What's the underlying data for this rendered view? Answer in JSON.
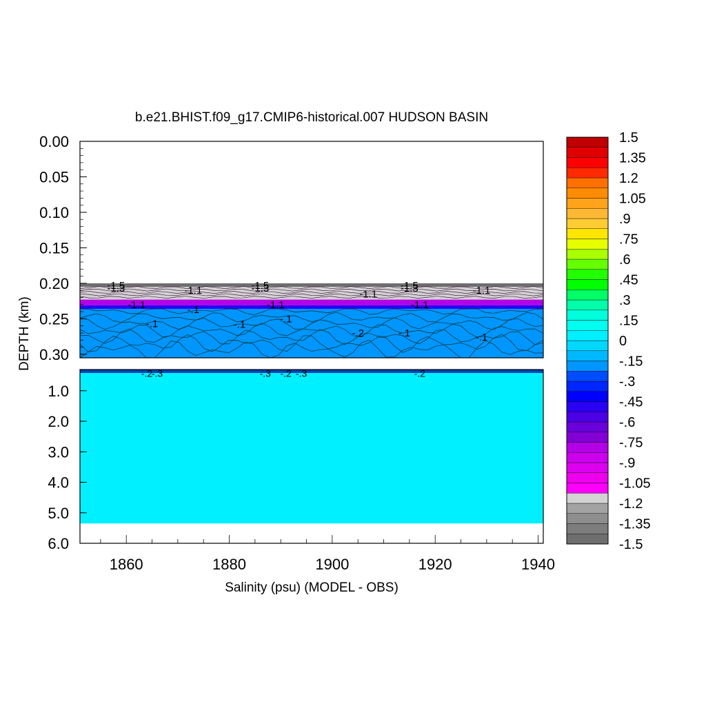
{
  "chart_data": {
    "type": "heatmap",
    "title": "b.e21.BHIST.f09_g17.CMIP6-historical.007 HUDSON BASIN",
    "xlabel": "Salinity (psu) (MODEL - OBS)",
    "ylabel": "DEPTH (km)",
    "xlim": [
      1851,
      1941
    ],
    "x_ticks": [
      1860,
      1880,
      1900,
      1920,
      1940
    ],
    "x_tick_labels": [
      "1860",
      "1880",
      "1900",
      "1920",
      "1940"
    ],
    "upper_panel": {
      "ylim": [
        0.0,
        0.305
      ],
      "y_ticks": [
        0.0,
        0.05,
        0.1,
        0.15,
        0.2,
        0.25,
        0.3
      ],
      "y_tick_labels": [
        "0.00",
        "0.05",
        "0.10",
        "0.15",
        "0.20",
        "0.25",
        "0.30"
      ],
      "layers": [
        {
          "depth_top": 0.2,
          "depth_bottom": 0.205,
          "value": -1.45
        },
        {
          "depth_top": 0.205,
          "depth_bottom": 0.223,
          "value": -1.2
        },
        {
          "depth_top": 0.223,
          "depth_bottom": 0.231,
          "value": -0.8
        },
        {
          "depth_top": 0.231,
          "depth_bottom": 0.236,
          "value": -0.5
        },
        {
          "depth_top": 0.236,
          "depth_bottom": 0.305,
          "value": -0.2
        }
      ],
      "contour_labels": [
        {
          "x": 1858,
          "depth": 0.203,
          "text": "-1.5"
        },
        {
          "x": 1858,
          "depth": 0.207,
          "text": "-1.3"
        },
        {
          "x": 1873,
          "depth": 0.21,
          "text": "-1.1"
        },
        {
          "x": 1862,
          "depth": 0.23,
          "text": "-1.1"
        },
        {
          "x": 1873,
          "depth": 0.237,
          "text": "-.1"
        },
        {
          "x": 1865,
          "depth": 0.257,
          "text": "-.1"
        },
        {
          "x": 1886,
          "depth": 0.203,
          "text": "-1.5"
        },
        {
          "x": 1886,
          "depth": 0.207,
          "text": "-1.3"
        },
        {
          "x": 1889,
          "depth": 0.23,
          "text": "-1.1"
        },
        {
          "x": 1882,
          "depth": 0.258,
          "text": "-.1"
        },
        {
          "x": 1891,
          "depth": 0.25,
          "text": "-.1"
        },
        {
          "x": 1907,
          "depth": 0.215,
          "text": "-1.1"
        },
        {
          "x": 1905,
          "depth": 0.27,
          "text": "-.2"
        },
        {
          "x": 1915,
          "depth": 0.203,
          "text": "-1.5"
        },
        {
          "x": 1915,
          "depth": 0.207,
          "text": "-1.3"
        },
        {
          "x": 1917,
          "depth": 0.23,
          "text": "-1.1"
        },
        {
          "x": 1914,
          "depth": 0.27,
          "text": "-.1"
        },
        {
          "x": 1929,
          "depth": 0.21,
          "text": "-1.1"
        },
        {
          "x": 1929,
          "depth": 0.276,
          "text": "-.1"
        }
      ]
    },
    "lower_panel": {
      "ylim": [
        0.305,
        6.0
      ],
      "y_ticks": [
        1.0,
        2.0,
        3.0,
        4.0,
        5.0,
        6.0
      ],
      "y_tick_labels": [
        "1.0",
        "2.0",
        "3.0",
        "4.0",
        "5.0",
        "6.0"
      ],
      "layers": [
        {
          "depth_top": 0.305,
          "depth_bottom": 0.42,
          "value": -0.3
        },
        {
          "depth_top": 0.42,
          "depth_bottom": 5.35,
          "value": 0.05
        }
      ],
      "contour_labels": [
        {
          "x": 1864,
          "depth": 0.45,
          "text": "-.2"
        },
        {
          "x": 1866,
          "depth": 0.45,
          "text": "-.3"
        },
        {
          "x": 1887,
          "depth": 0.45,
          "text": "-.3"
        },
        {
          "x": 1891,
          "depth": 0.45,
          "text": "-.2"
        },
        {
          "x": 1894,
          "depth": 0.45,
          "text": "-.3"
        },
        {
          "x": 1917,
          "depth": 0.45,
          "text": "-.2"
        }
      ]
    },
    "colorbar": {
      "min": -1.5,
      "max": 1.5,
      "step": 0.075,
      "labels": [
        "1.5",
        "1.35",
        "1.2",
        "1.05",
        ".9",
        ".75",
        ".6",
        ".45",
        ".3",
        ".15",
        "0",
        "-.15",
        "-.3",
        "-.45",
        "-.6",
        "-.75",
        "-.9",
        "-1.05",
        "-1.2",
        "-1.35",
        "-1.5"
      ]
    }
  }
}
